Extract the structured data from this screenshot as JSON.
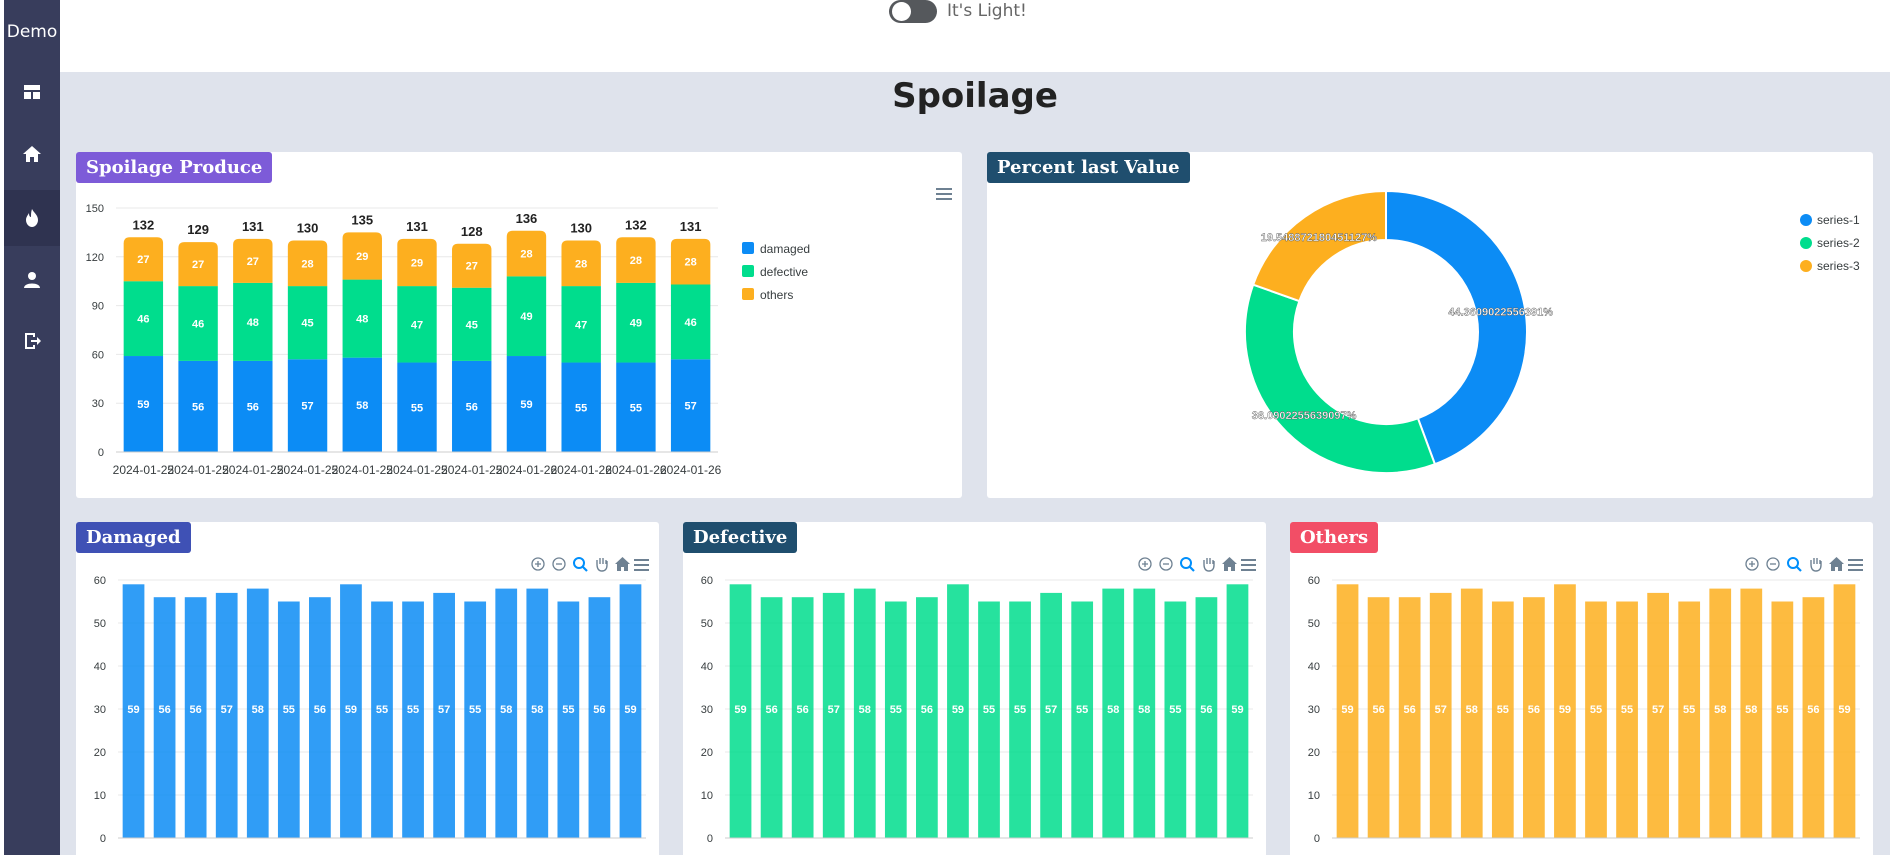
{
  "app": {
    "brand": "Demo"
  },
  "sidebar": {
    "items": [
      {
        "icon": "dashboard-icon",
        "active": false
      },
      {
        "icon": "home-icon",
        "active": false
      },
      {
        "icon": "fire-icon",
        "active": true
      },
      {
        "icon": "user-icon",
        "active": false
      },
      {
        "icon": "logout-icon",
        "active": false
      }
    ]
  },
  "theme_toggle": {
    "label": "It's Light!",
    "on": false
  },
  "page": {
    "title": "Spoilage"
  },
  "cards": {
    "produce": {
      "title": "Spoilage Produce",
      "color": "#7d5bd8"
    },
    "percent": {
      "title": "Percent last Value",
      "color": "#1f4e6e"
    },
    "damaged": {
      "title": "Damaged",
      "color": "#3f51b5"
    },
    "defective": {
      "title": "Defective",
      "color": "#1f4e6e"
    },
    "others": {
      "title": "Others",
      "color": "#f24e66"
    }
  },
  "colors": {
    "damaged": "#0c8cf5",
    "defective": "#00dd8d",
    "others": "#fdaf1f"
  },
  "chart_data": [
    {
      "id": "spoilage-produce",
      "type": "bar",
      "stacked": true,
      "categories": [
        "2024-01-25",
        "2024-01-25",
        "2024-01-25",
        "2024-01-25",
        "2024-01-25",
        "2024-01-25",
        "2024-01-25",
        "2024-01-26",
        "2024-01-26",
        "2024-01-26",
        "2024-01-26"
      ],
      "series": [
        {
          "name": "damaged",
          "values": [
            59,
            56,
            56,
            57,
            58,
            55,
            56,
            59,
            55,
            55,
            57
          ]
        },
        {
          "name": "defective",
          "values": [
            46,
            46,
            48,
            45,
            48,
            47,
            45,
            49,
            47,
            49,
            46
          ]
        },
        {
          "name": "others",
          "values": [
            27,
            27,
            27,
            28,
            29,
            29,
            27,
            28,
            28,
            28,
            28
          ]
        }
      ],
      "totals": [
        132,
        129,
        131,
        130,
        135,
        131,
        128,
        136,
        130,
        132,
        131
      ],
      "ylim": [
        0,
        150
      ],
      "yticks": [
        0,
        30,
        60,
        90,
        120,
        150
      ],
      "legend": "right"
    },
    {
      "id": "percent-last-value",
      "type": "pie",
      "donut": true,
      "series": [
        {
          "name": "series-1",
          "label": "44.3609022556391%",
          "value": 44.3609022556391
        },
        {
          "name": "series-2",
          "label": "36.0902255639097%",
          "value": 36.0902255639097
        },
        {
          "name": "series-3",
          "label": "19.548872180451127%",
          "value": 19.548872180451127
        }
      ],
      "legend": "top-right"
    },
    {
      "id": "damaged",
      "type": "bar",
      "values": [
        59,
        56,
        56,
        57,
        58,
        55,
        56,
        59,
        55,
        55,
        57,
        55,
        58,
        58,
        55,
        56,
        59
      ],
      "ylim": [
        0,
        60
      ],
      "yticks": [
        0,
        10,
        20,
        30,
        40,
        50,
        60
      ]
    },
    {
      "id": "defective",
      "type": "bar",
      "values": [
        59,
        56,
        56,
        57,
        58,
        55,
        56,
        59,
        55,
        55,
        57,
        55,
        58,
        58,
        55,
        56,
        59
      ],
      "ylim": [
        0,
        60
      ],
      "yticks": [
        0,
        10,
        20,
        30,
        40,
        50,
        60
      ]
    },
    {
      "id": "others",
      "type": "bar",
      "values": [
        59,
        56,
        56,
        57,
        58,
        55,
        56,
        59,
        55,
        55,
        57,
        55,
        58,
        58,
        55,
        56,
        59
      ],
      "ylim": [
        0,
        60
      ],
      "yticks": [
        0,
        10,
        20,
        30,
        40,
        50,
        60
      ]
    }
  ]
}
